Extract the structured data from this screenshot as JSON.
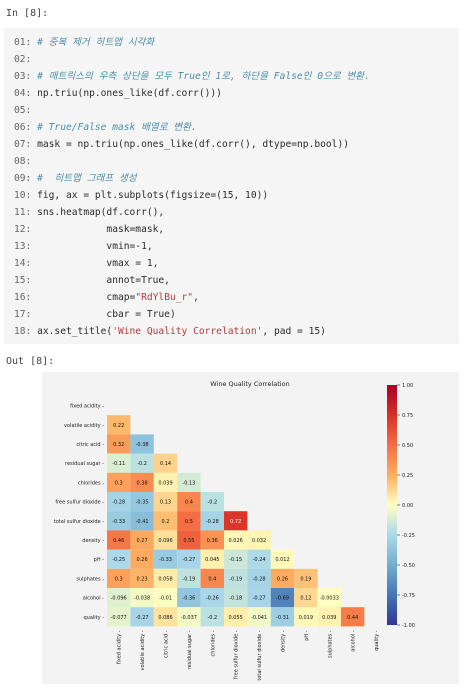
{
  "cell": {
    "in_prompt": "In [8]:",
    "out_prompt": "Out [8]:",
    "lines": [
      {
        "n": "01:",
        "code": "# 중복 제거 히트맵 시각화",
        "kind": "comment"
      },
      {
        "n": "02:",
        "code": "",
        "kind": "plain"
      },
      {
        "n": "03:",
        "code": "# 매트릭스의 우측 상단을 모두 True인 1로, 하단을 False인 0으로 변환.",
        "kind": "comment"
      },
      {
        "n": "04:",
        "code": "np.triu(np.ones_like(df.corr()))",
        "kind": "plain"
      },
      {
        "n": "05:",
        "code": "",
        "kind": "plain"
      },
      {
        "n": "06:",
        "code": "# True/False mask 배열로 변환.",
        "kind": "comment"
      },
      {
        "n": "07:",
        "code": "mask = np.triu(np.ones_like(df.corr(), dtype=np.bool))",
        "kind": "plain"
      },
      {
        "n": "08:",
        "code": "",
        "kind": "plain"
      },
      {
        "n": "09:",
        "code": "#  히트맵 그래프 생성",
        "kind": "comment"
      },
      {
        "n": "10:",
        "code": "fig, ax = plt.subplots(figsize=(15, 10))",
        "kind": "plain"
      },
      {
        "n": "11:",
        "code": "sns.heatmap(df.corr(),",
        "kind": "plain"
      },
      {
        "n": "12:",
        "code": "            mask=mask,",
        "kind": "plain"
      },
      {
        "n": "13:",
        "code": "            vmin=-1,",
        "kind": "plain"
      },
      {
        "n": "14:",
        "code": "            vmax = 1,",
        "kind": "plain"
      },
      {
        "n": "15:",
        "code": "            annot=True,",
        "kind": "plain"
      },
      {
        "n": "16:",
        "code": "            cmap=\"RdYlBu_r\",",
        "kind": "string"
      },
      {
        "n": "17:",
        "code": "            cbar = True)",
        "kind": "plain"
      },
      {
        "n": "18:",
        "code": "ax.set_title('Wine Quality Correlation', pad = 15)",
        "kind": "string"
      }
    ]
  },
  "chart_data": {
    "type": "heatmap",
    "title": "Wine Quality Correlation",
    "variables": [
      "fixed acidity",
      "volatile acidity",
      "citric acid",
      "residual sugar",
      "chlorides",
      "free sulfur dioxide",
      "total sulfur dioxide",
      "density",
      "pH",
      "sulphates",
      "alcohol",
      "quality"
    ],
    "rows": [
      [],
      [
        0.22
      ],
      [
        0.32,
        -0.38
      ],
      [
        -0.11,
        -0.2,
        0.14
      ],
      [
        0.3,
        0.38,
        0.039,
        -0.13
      ],
      [
        -0.28,
        -0.35,
        0.13,
        0.4,
        -0.2
      ],
      [
        -0.33,
        -0.41,
        0.2,
        0.5,
        -0.28,
        0.72
      ],
      [
        0.46,
        0.27,
        0.096,
        0.55,
        0.36,
        0.026,
        0.032
      ],
      [
        -0.25,
        0.26,
        -0.33,
        -0.27,
        0.045,
        -0.15,
        -0.24,
        0.012
      ],
      [
        0.3,
        0.23,
        0.058,
        -0.19,
        0.4,
        -0.19,
        -0.28,
        0.26,
        0.19
      ],
      [
        -0.096,
        -0.038,
        -0.01,
        -0.36,
        -0.26,
        -0.18,
        -0.27,
        -0.69,
        0.12,
        -0.0033
      ],
      [
        -0.077,
        -0.27,
        0.086,
        -0.037,
        -0.2,
        0.055,
        -0.041,
        -0.31,
        0.019,
        0.039,
        0.44
      ]
    ],
    "colorbar": {
      "min": -1,
      "max": 1,
      "ticks": [
        "1.00",
        "0.75",
        "0.50",
        "0.25",
        "0.00",
        "-0.25",
        "-0.50",
        "-0.75",
        "-1.00"
      ]
    },
    "colormap": "RdYlBu_r"
  }
}
